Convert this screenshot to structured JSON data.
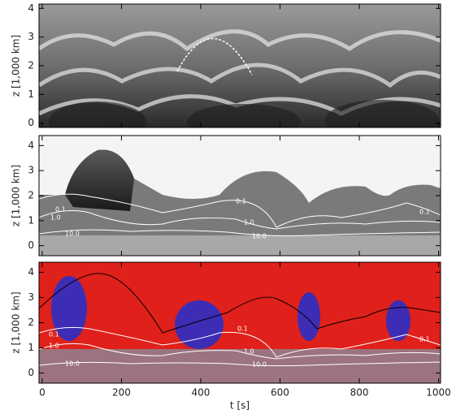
{
  "chart_data": [
    {
      "type": "image",
      "ylabel": "z [1,000 km]",
      "ylim": [
        -0.15,
        4.15
      ],
      "yticks": [
        0,
        1,
        2,
        3,
        4
      ],
      "xlim": [
        -8,
        1005
      ]
    },
    {
      "type": "image",
      "ylabel": "z [1,000 km]",
      "ylim": [
        -0.4,
        4.4
      ],
      "yticks": [
        0,
        1,
        2,
        3,
        4
      ],
      "xlim": [
        -8,
        1005
      ],
      "annotations": [
        "0.1",
        "1.0",
        "10.0",
        "0.1",
        "1.0",
        "10.0",
        "0.1"
      ]
    },
    {
      "type": "image",
      "ylabel": "z [1,000 km]",
      "xlabel": "t [s]",
      "ylim": [
        -0.4,
        4.4
      ],
      "yticks": [
        0,
        1,
        2,
        3,
        4
      ],
      "xlim": [
        -8,
        1005
      ],
      "xticks": [
        0,
        200,
        400,
        600,
        800,
        1000
      ],
      "annotations": [
        "0.1",
        "1.0",
        "10.0",
        "0.1",
        "1.0",
        "10.0",
        "0.1"
      ]
    }
  ]
}
